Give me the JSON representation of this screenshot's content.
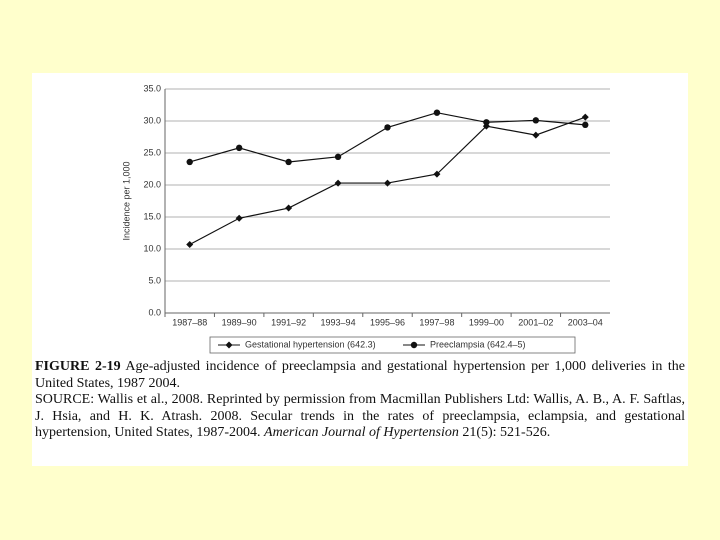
{
  "chart_data": {
    "type": "line",
    "y_label": "Incidence per 1,000",
    "categories": [
      "1987–88",
      "1989–90",
      "1991–92",
      "1993–94",
      "1995–96",
      "1997–98",
      "1999–00",
      "2001–02",
      "2003–04"
    ],
    "series": [
      {
        "name": "Gestational hypertension (642.3)",
        "color": "#111111",
        "marker": "diamond",
        "values": [
          10.7,
          14.8,
          16.4,
          20.3,
          20.3,
          21.7,
          29.2,
          27.8,
          30.6
        ]
      },
      {
        "name": "Preeclampsia (642.4–5)",
        "color": "#111111",
        "marker": "circle",
        "values": [
          23.6,
          25.8,
          23.6,
          24.4,
          29.0,
          31.3,
          29.8,
          30.1,
          29.4
        ]
      }
    ],
    "ylim": [
      0,
      35
    ],
    "yticks": [
      {
        "value": 0,
        "label": "0.0"
      },
      {
        "value": 5,
        "label": "5.0"
      },
      {
        "value": 10,
        "label": "10.0"
      },
      {
        "value": 15,
        "label": "15.0"
      },
      {
        "value": 20,
        "label": "20.0"
      },
      {
        "value": 25,
        "label": "25.0"
      },
      {
        "value": 30,
        "label": "30.0"
      },
      {
        "value": 35,
        "label": "35.0"
      }
    ],
    "grid": true
  },
  "caption": {
    "figure_label": "FIGURE 2-19",
    "text": "Age-adjusted incidence of preeclampsia and gestational hypertension per 1,000 deliveries in the United States, 1987 2004.",
    "source": "SOURCE: Wallis et al., 2008. Reprinted by permission from Macmillan Publishers Ltd: Wallis, A. B., A. F. Saftlas, J. Hsia, and H. K. Atrash. 2008. Secular trends in the rates of preeclampsia, eclampsia, and gestational hypertension, United States, 1987-2004.",
    "journal": "American Journal of Hypertension",
    "citation": "21(5): 521-526."
  }
}
